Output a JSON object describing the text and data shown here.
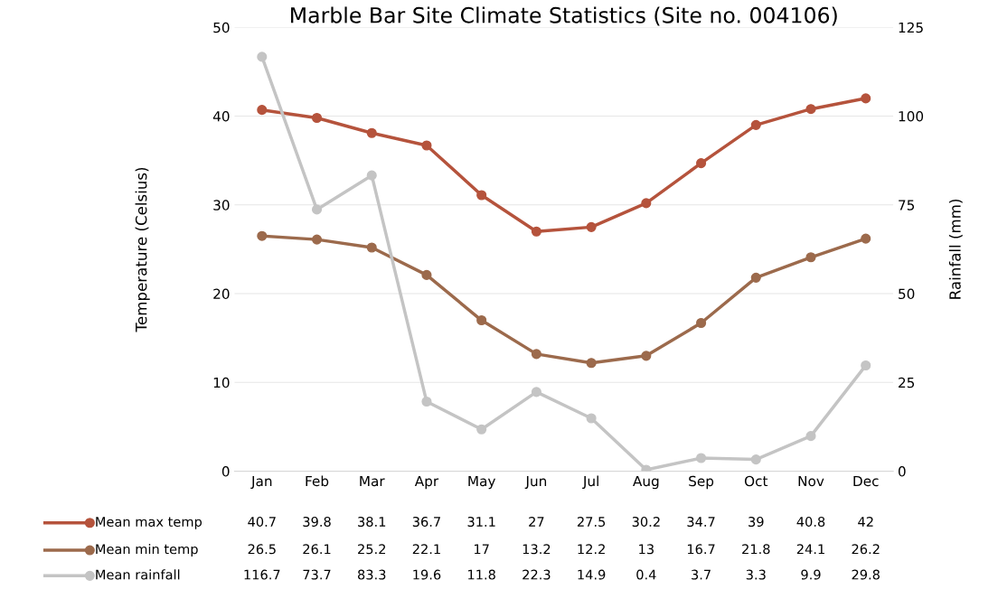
{
  "chart_data": {
    "type": "line",
    "title": "Marble Bar Site Climate Statistics (Site no. 004106)",
    "categories": [
      "Jan",
      "Feb",
      "Mar",
      "Apr",
      "May",
      "Jun",
      "Jul",
      "Aug",
      "Sep",
      "Oct",
      "Nov",
      "Dec"
    ],
    "ylabel": "Temperature (Celsius)",
    "y2label": "Rainfall (mm)",
    "ylim": [
      0,
      50
    ],
    "yticks": [
      0,
      10,
      20,
      30,
      40,
      50
    ],
    "y2lim": [
      0,
      125
    ],
    "y2ticks": [
      0,
      25,
      50,
      75,
      100,
      125
    ],
    "series": [
      {
        "name": "Mean max temp",
        "color": "#b5533c",
        "values": [
          40.7,
          39.8,
          38.1,
          36.7,
          31.1,
          27,
          27.5,
          30.2,
          34.7,
          39,
          40.8,
          42
        ]
      },
      {
        "name": "Mean min temp",
        "color": "#9c6a4c",
        "values": [
          26.5,
          26.1,
          25.2,
          22.1,
          17,
          13.2,
          12.2,
          13,
          16.7,
          21.8,
          24.1,
          26.2
        ]
      },
      {
        "name": "Mean rainfall",
        "color": "#c4c4c4",
        "axis": "y2",
        "values": [
          116.7,
          73.7,
          83.3,
          19.6,
          11.8,
          22.3,
          14.9,
          0.4,
          3.7,
          3.3,
          9.9,
          29.8
        ]
      }
    ],
    "marker": "circle",
    "grid": "y",
    "data_labels": true,
    "legend": "bottom left"
  }
}
